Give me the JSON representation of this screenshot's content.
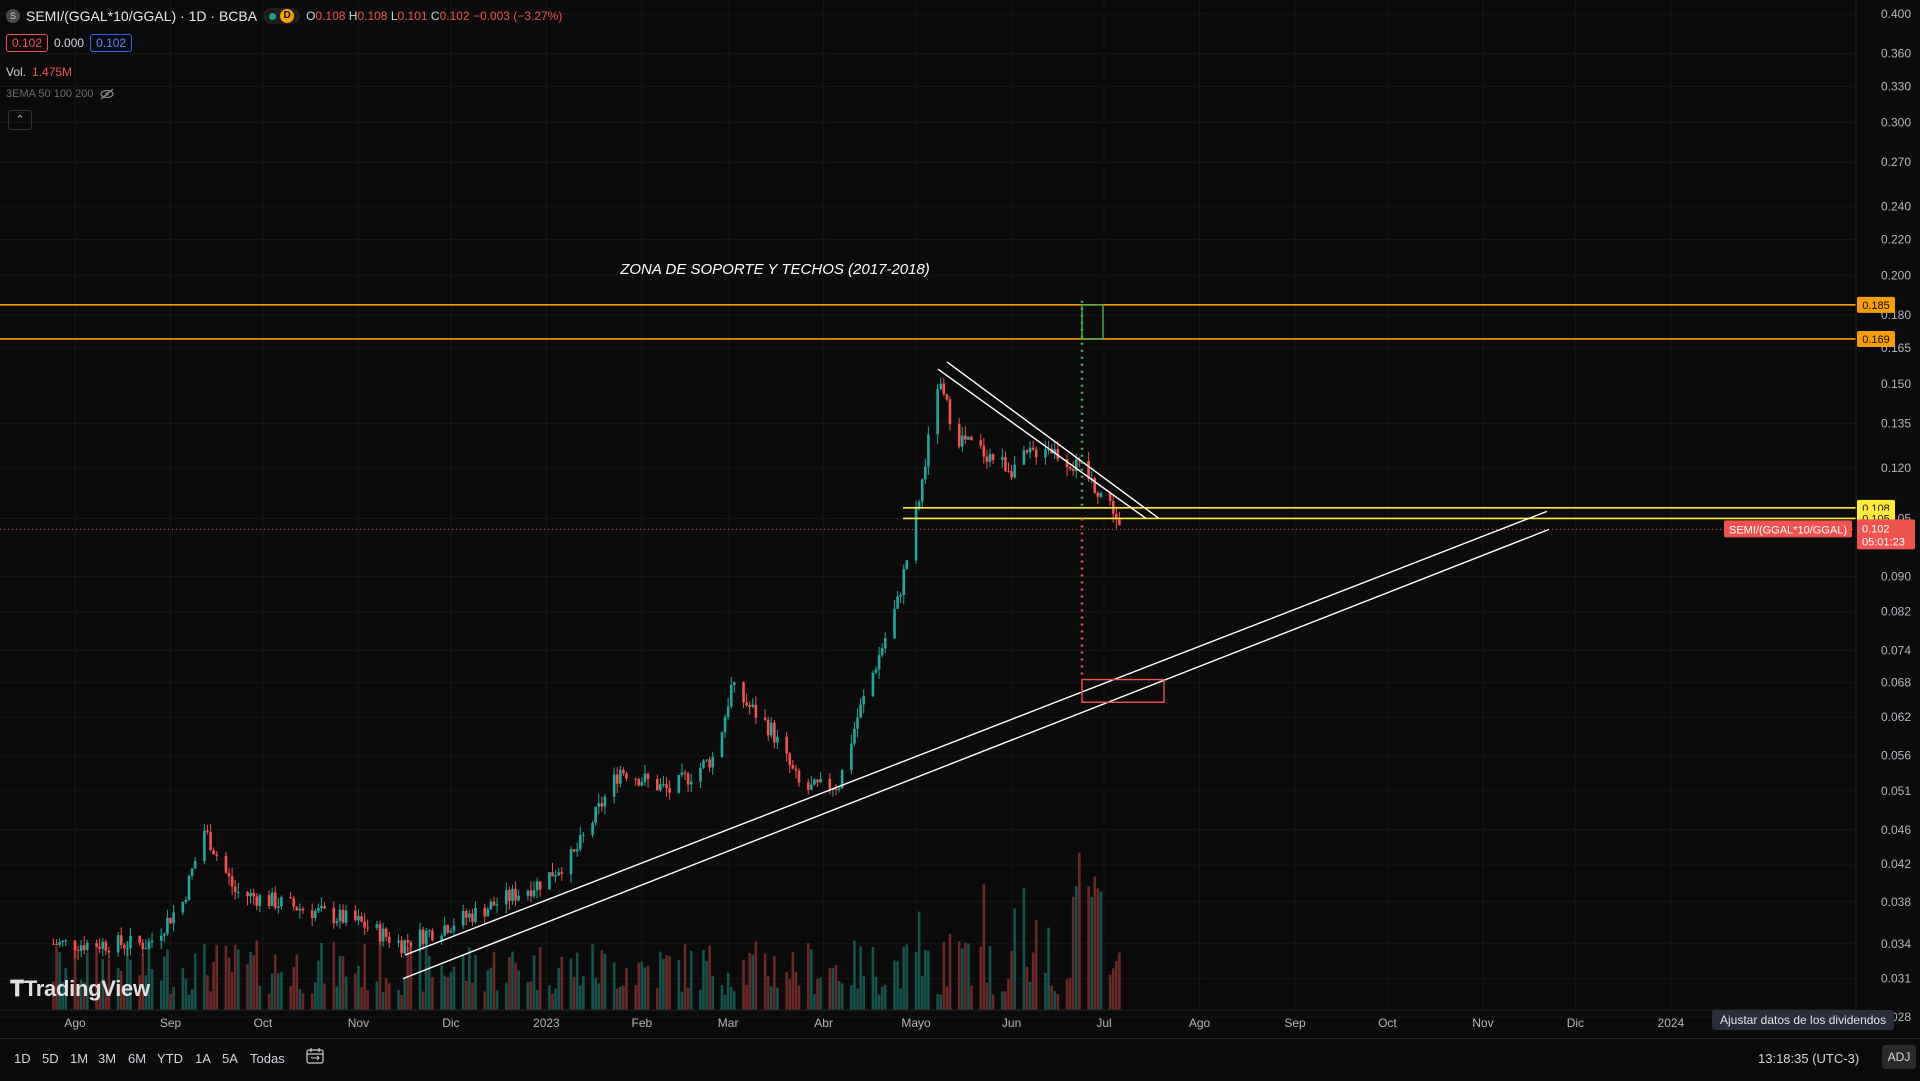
{
  "header": {
    "symbol_icon": "S",
    "symbol": "SEMI/(GGAL*10/GGAL) · 1D · BCBA",
    "badge": "D",
    "ohlc": {
      "o_key": "O",
      "o": "0.108",
      "h_key": "H",
      "h": "0.108",
      "l_key": "L",
      "l": "0.101",
      "c_key": "C",
      "c": "0.102",
      "chg": "−0.003 (−3.27%)"
    },
    "bid": "0.102",
    "spread": "0.000",
    "ask": "0.102",
    "vol_label": "Vol.",
    "vol_value": "1.475M",
    "ema_label": "3EMA 50 100 200",
    "collapse_icon": "chevron-up-icon"
  },
  "colors": {
    "up": "#26a69a",
    "down": "#ef5350",
    "orange": "#f59e0b",
    "yellow": "#ffeb3b",
    "bg": "#0b0b0b",
    "green_box": "#4caf50"
  },
  "chart_data": {
    "type": "candlestick",
    "title": "",
    "annotation": "ZONA DE SOPORTE Y TECHOS (2017-2018)",
    "y_scale": "log",
    "ylim": [
      0.026,
      0.41
    ],
    "y_ticks": [
      "0.400",
      "0.360",
      "0.330",
      "0.300",
      "0.270",
      "0.240",
      "0.220",
      "0.200",
      "0.180",
      "0.165",
      "0.150",
      "0.135",
      "0.120",
      "0.105",
      "0.090",
      "0.082",
      "0.074",
      "0.068",
      "0.062",
      "0.056",
      "0.051",
      "0.046",
      "0.042",
      "0.038",
      "0.034",
      "0.031",
      "0.028"
    ],
    "x_ticks": [
      "Ago",
      "Sep",
      "Oct",
      "Nov",
      "Dic",
      "2023",
      "Feb",
      "Mar",
      "Abr",
      "Mayo",
      "Jun",
      "Jul",
      "Ago",
      "Sep",
      "Oct",
      "Nov",
      "Dic",
      "2024"
    ],
    "price_anchors": [
      [
        "2022-07-25",
        0.034
      ],
      [
        "2022-08-25",
        0.034
      ],
      [
        "2022-09-05",
        0.038
      ],
      [
        "2022-09-12",
        0.046
      ],
      [
        "2022-09-22",
        0.039
      ],
      [
        "2022-10-05",
        0.038
      ],
      [
        "2022-11-01",
        0.036
      ],
      [
        "2022-11-15",
        0.034
      ],
      [
        "2022-12-10",
        0.037
      ],
      [
        "2022-12-30",
        0.04
      ],
      [
        "2023-01-10",
        0.043
      ],
      [
        "2023-01-25",
        0.054
      ],
      [
        "2023-02-10",
        0.051
      ],
      [
        "2023-02-25",
        0.056
      ],
      [
        "2023-03-02",
        0.067
      ],
      [
        "2023-03-15",
        0.06
      ],
      [
        "2023-03-25",
        0.051
      ],
      [
        "2023-04-06",
        0.052
      ],
      [
        "2023-04-12",
        0.062
      ],
      [
        "2023-04-25",
        0.084
      ],
      [
        "2023-05-02",
        0.11
      ],
      [
        "2023-05-08",
        0.15
      ],
      [
        "2023-05-15",
        0.13
      ],
      [
        "2023-06-01",
        0.12
      ],
      [
        "2023-06-12",
        0.128
      ],
      [
        "2023-06-25",
        0.118
      ],
      [
        "2023-07-04",
        0.108
      ],
      [
        "2023-07-06",
        0.102
      ]
    ],
    "horizontal_levels": [
      {
        "value": 0.185,
        "color": "#f59e0b",
        "label": "0.185"
      },
      {
        "value": 0.169,
        "color": "#f59e0b",
        "label": "0.169"
      },
      {
        "value": 0.108,
        "color": "#ffeb3b",
        "label": "0.108"
      },
      {
        "value": 0.105,
        "color": "#ffeb3b",
        "label": "0.105"
      }
    ],
    "last_price": {
      "value": 0.102,
      "label": "0.102",
      "countdown": "05:01:23",
      "symbol": "SEMI/(GGAL*10/GGAL)"
    }
  },
  "timeframes": [
    "1D",
    "5D",
    "1M",
    "3M",
    "6M",
    "YTD",
    "1A",
    "5A",
    "Todas"
  ],
  "calendar_icon": "calendar-range-icon",
  "logo": "TradingView",
  "clock": "13:18:35 (UTC-3)",
  "adj": "ADJ",
  "tooltip": "Ajustar datos de los dividendos"
}
